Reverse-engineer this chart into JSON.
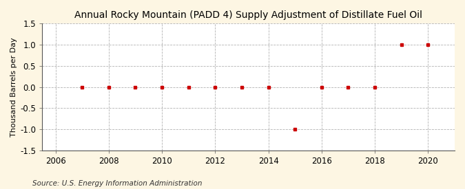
{
  "title": "Annual Rocky Mountain (PADD 4) Supply Adjustment of Distillate Fuel Oil",
  "ylabel": "Thousand Barrels per Day",
  "source": "Source: U.S. Energy Information Administration",
  "years": [
    2007,
    2008,
    2009,
    2010,
    2011,
    2012,
    2013,
    2014,
    2015,
    2016,
    2017,
    2018,
    2019,
    2020
  ],
  "values": [
    0,
    0,
    0,
    0,
    0,
    0,
    0,
    0,
    -1,
    0,
    0,
    0,
    1,
    1
  ],
  "marker_color": "#cc0000",
  "marker_style": "s",
  "marker_size": 3.5,
  "xlim": [
    2005.5,
    2021.0
  ],
  "ylim": [
    -1.5,
    1.5
  ],
  "yticks": [
    -1.5,
    -1.0,
    -0.5,
    0.0,
    0.5,
    1.0,
    1.5
  ],
  "xticks": [
    2006,
    2008,
    2010,
    2012,
    2014,
    2016,
    2018,
    2020
  ],
  "outer_background": "#fdf6e3",
  "plot_background": "#ffffff",
  "grid_color": "#aaaaaa",
  "title_fontsize": 10,
  "label_fontsize": 8,
  "tick_fontsize": 8.5,
  "source_fontsize": 7.5
}
